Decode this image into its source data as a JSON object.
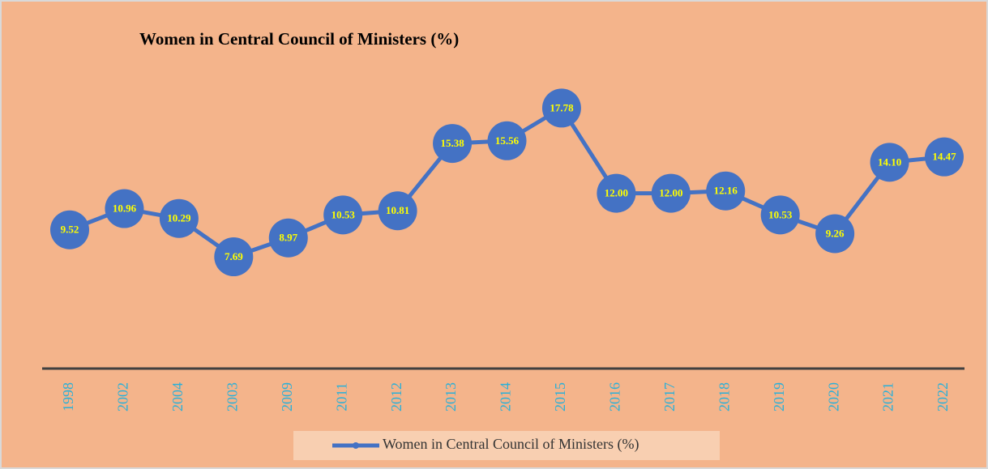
{
  "chart_data": {
    "type": "line",
    "title": "Women in Central Council of Ministers (%)",
    "categories": [
      "1998",
      "2002",
      "2004",
      "2003",
      "2009",
      "2011",
      "2012",
      "2013",
      "2014",
      "2015",
      "2016",
      "2017",
      "2018",
      "2019",
      "2020",
      "2021",
      "2022"
    ],
    "series": [
      {
        "name": "Women in Central Council of Ministers (%)",
        "color": "#4472c4",
        "values": [
          9.52,
          10.96,
          10.29,
          7.69,
          8.97,
          10.53,
          10.81,
          15.38,
          15.56,
          17.78,
          12.0,
          12.0,
          12.16,
          10.53,
          9.26,
          14.1,
          14.47
        ],
        "value_labels": [
          "9.52",
          "10.96",
          "10.29",
          "7.69",
          "8.97",
          "10.53",
          "10.81",
          "15.38",
          "15.56",
          "17.78",
          "12.00",
          "12.00",
          "12.16",
          "10.53",
          "9.26",
          "14.10",
          "14.47"
        ]
      }
    ],
    "ylim": [
      0,
      20
    ],
    "legend": "bottom"
  }
}
